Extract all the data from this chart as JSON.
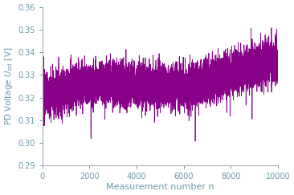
{
  "title": "",
  "xlabel": "Measurement number n",
  "ylabel_prefix": "PD Voltage ",
  "ylabel_var": "U_pd",
  "ylabel_suffix": " [V]",
  "xlim": [
    0,
    10000
  ],
  "ylim": [
    0.29,
    0.36
  ],
  "yticks": [
    0.29,
    0.3,
    0.31,
    0.32,
    0.33,
    0.34,
    0.35,
    0.36
  ],
  "xticks": [
    0,
    2000,
    4000,
    6000,
    8000,
    10000
  ],
  "line_color": "#880088",
  "n_points": 10000,
  "base_mean": 0.3205,
  "trend_end": 0.333,
  "noise_std": 0.0038,
  "random_seed": 17,
  "linewidth": 0.55,
  "label_color": "#6699aa",
  "tick_color": "#6699aa",
  "axis_color": "#aaaaaa",
  "background_color": "#ffffff",
  "n_down_spikes": 12,
  "n_up_spikes": 30,
  "down_spike_mag": 0.018,
  "up_spike_mag": 0.012,
  "slow_amp": 0.003,
  "slow_period": 8000
}
